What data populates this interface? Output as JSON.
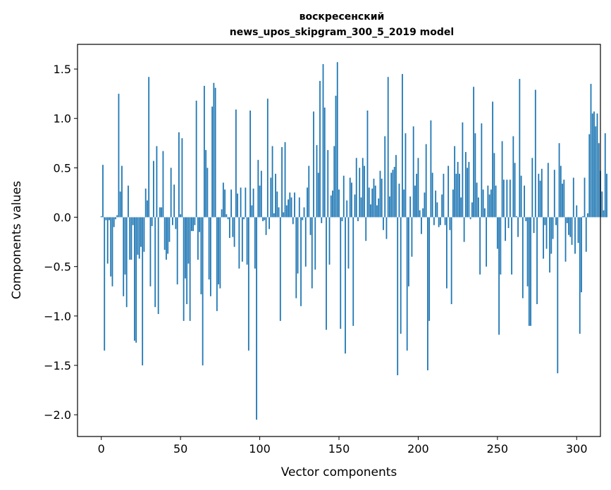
{
  "chart_data": {
    "type": "bar",
    "title_lines": [
      "воскресенский",
      "news_upos_skipgram_300_5_2019 model"
    ],
    "xlabel": "Vector components",
    "ylabel": "Components values",
    "xlim": [
      -15,
      315
    ],
    "ylim": [
      -2.22,
      1.75
    ],
    "xticks": [
      0,
      50,
      100,
      150,
      200,
      250,
      300
    ],
    "xtick_labels": [
      "0",
      "50",
      "100",
      "150",
      "200",
      "250",
      "300"
    ],
    "yticks": [
      -2.0,
      -1.5,
      -1.0,
      -0.5,
      0.0,
      0.5,
      1.0,
      1.5
    ],
    "ytick_labels": [
      "−2.0",
      "−1.5",
      "−1.0",
      "−0.5",
      "0.0",
      "0.5",
      "1.0",
      "1.5"
    ],
    "bar_color": "#1f77b4",
    "values": [
      0.01,
      0.53,
      -1.35,
      -0.03,
      -0.47,
      -0.03,
      -0.6,
      -0.7,
      -0.1,
      -0.02,
      0.02,
      1.25,
      0.26,
      0.52,
      -0.8,
      -0.58,
      -0.91,
      0.32,
      -0.43,
      -0.43,
      -0.08,
      -1.25,
      -1.27,
      -0.38,
      -0.42,
      -0.3,
      -1.5,
      -0.35,
      0.29,
      0.17,
      1.42,
      -0.7,
      -0.09,
      0.57,
      -0.91,
      0.72,
      -0.98,
      0.1,
      0.1,
      0.67,
      -0.33,
      -0.43,
      -0.37,
      -0.25,
      0.5,
      -0.08,
      0.33,
      -0.12,
      -0.68,
      0.86,
      0.03,
      0.8,
      -1.05,
      -0.62,
      -0.88,
      -0.47,
      -1.05,
      -0.14,
      -0.14,
      -0.08,
      1.18,
      -0.43,
      -0.15,
      -0.78,
      -1.5,
      1.33,
      0.68,
      0.5,
      -0.63,
      -0.8,
      1.12,
      1.36,
      1.31,
      -0.95,
      -0.68,
      -0.72,
      0.08,
      0.35,
      0.28,
      0.03,
      -0.02,
      -0.21,
      0.28,
      -0.2,
      -0.3,
      1.09,
      0.24,
      -0.52,
      0.3,
      -0.45,
      -0.02,
      0.3,
      -0.48,
      -1.35,
      1.08,
      0.12,
      0.29,
      -0.52,
      -2.05,
      0.58,
      0.32,
      0.47,
      -0.04,
      -0.03,
      -0.18,
      1.2,
      -0.12,
      0.4,
      0.72,
      0.04,
      0.44,
      0.26,
      0.1,
      -1.05,
      0.71,
      0.05,
      0.76,
      0.12,
      0.18,
      0.25,
      0.2,
      -0.07,
      0.25,
      -0.82,
      -0.57,
      0.2,
      -0.9,
      -0.03,
      0.1,
      -0.5,
      0.3,
      0.52,
      -0.18,
      -0.72,
      1.07,
      -0.53,
      0.73,
      0.45,
      1.38,
      -0.06,
      1.55,
      1.11,
      -1.14,
      0.68,
      -0.48,
      0.22,
      0.27,
      0.72,
      1.23,
      1.57,
      0.28,
      -1.13,
      -0.04,
      0.42,
      -1.38,
      0.17,
      -0.52,
      0.4,
      0.35,
      -1.1,
      0.23,
      0.6,
      -0.04,
      0.5,
      0.2,
      0.6,
      0.52,
      -0.24,
      1.08,
      0.3,
      0.13,
      0.29,
      0.39,
      0.32,
      0.12,
      0.19,
      0.47,
      0.39,
      -0.13,
      0.82,
      -0.22,
      1.42,
      0.21,
      0.45,
      0.48,
      0.51,
      0.63,
      -1.6,
      0.34,
      -1.18,
      1.45,
      0.28,
      0.85,
      -1.35,
      -0.7,
      0.21,
      -0.4,
      0.92,
      0.32,
      0.44,
      0.6,
      0.07,
      -0.17,
      0.09,
      0.25,
      0.74,
      -1.55,
      -1.05,
      0.98,
      0.45,
      -0.08,
      0.27,
      0.15,
      -0.1,
      -0.08,
      0.23,
      0.44,
      -0.08,
      -0.72,
      0.52,
      -0.13,
      -0.88,
      0.28,
      0.72,
      0.44,
      0.56,
      0.44,
      0.2,
      0.96,
      -0.25,
      0.66,
      0.5,
      0.56,
      -0.02,
      0.15,
      1.32,
      0.85,
      0.35,
      0.2,
      -0.58,
      0.95,
      0.28,
      0.09,
      -0.5,
      0.32,
      0.23,
      0.28,
      1.17,
      0.65,
      0.32,
      -0.32,
      -1.19,
      -0.58,
      0.77,
      0.38,
      -0.24,
      0.38,
      -0.11,
      0.38,
      -0.58,
      0.82,
      0.55,
      0.01,
      -0.2,
      1.4,
      0.42,
      -0.82,
      0.32,
      -0.04,
      -0.7,
      -1.1,
      -1.1,
      0.6,
      -0.16,
      1.29,
      -0.88,
      0.44,
      0.37,
      0.49,
      -0.42,
      -0.08,
      -0.32,
      0.55,
      -0.56,
      -0.37,
      -0.22,
      0.48,
      -0.08,
      -1.58,
      0.75,
      0.52,
      0.34,
      0.38,
      -0.45,
      -0.06,
      -0.18,
      -0.2,
      -0.28,
      0.4,
      -0.37,
      0.12,
      -0.26,
      -1.18,
      -0.76,
      0.01,
      0.4,
      -0.35,
      0.04,
      0.84,
      1.35,
      1.05,
      1.07,
      0.92,
      1.05,
      0.75,
      0.47,
      0.26,
      0.07,
      0.85,
      0.44
    ]
  }
}
